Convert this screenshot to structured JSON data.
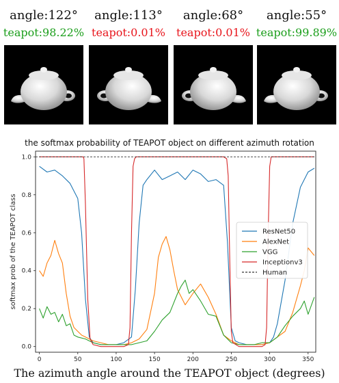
{
  "panels": [
    {
      "angle": "angle:122°",
      "prediction": "teapot:98.22%",
      "color": "#1a9e1a",
      "view_deg": 122
    },
    {
      "angle": "angle:113°",
      "prediction": "teapot:0.01%",
      "color": "#e8141b",
      "view_deg": 113
    },
    {
      "angle": "angle:68°",
      "prediction": "teapot:0.01%",
      "color": "#e8141b",
      "view_deg": 68
    },
    {
      "angle": "angle:55°",
      "prediction": "teapot:99.89%",
      "color": "#1a9e1a",
      "view_deg": 55
    }
  ],
  "chart_data": {
    "type": "line",
    "title": "the softmax probability of TEAPOT object on different azimuth rotation",
    "xlabel": "The azimuth angle around the TEAPOT object (degrees)",
    "ylabel": "softmax prob of the TEAPOT class",
    "xlim": [
      -5,
      360
    ],
    "ylim": [
      -0.03,
      1.03
    ],
    "xticks": [
      0,
      50,
      100,
      150,
      200,
      250,
      300,
      350
    ],
    "yticks": [
      0.0,
      0.2,
      0.4,
      0.6,
      0.8,
      1.0
    ],
    "legend_position": "center-right",
    "grid": false,
    "series": [
      {
        "name": "ResNet50",
        "color": "#1f77b4",
        "dash": "",
        "x": [
          0,
          10,
          20,
          30,
          40,
          50,
          55,
          60,
          65,
          70,
          80,
          90,
          100,
          110,
          120,
          125,
          130,
          135,
          140,
          150,
          160,
          170,
          180,
          190,
          200,
          210,
          220,
          230,
          240,
          245,
          250,
          255,
          260,
          270,
          280,
          290,
          300,
          305,
          310,
          320,
          330,
          340,
          350,
          358
        ],
        "y": [
          0.95,
          0.92,
          0.93,
          0.9,
          0.86,
          0.78,
          0.6,
          0.25,
          0.05,
          0.02,
          0.01,
          0.01,
          0.01,
          0.02,
          0.05,
          0.3,
          0.65,
          0.85,
          0.88,
          0.93,
          0.88,
          0.9,
          0.92,
          0.88,
          0.93,
          0.91,
          0.87,
          0.88,
          0.85,
          0.55,
          0.1,
          0.03,
          0.02,
          0.01,
          0.01,
          0.01,
          0.02,
          0.05,
          0.12,
          0.35,
          0.65,
          0.84,
          0.92,
          0.94
        ]
      },
      {
        "name": "AlexNet",
        "color": "#ff7f0e",
        "dash": "",
        "x": [
          0,
          5,
          10,
          15,
          20,
          25,
          30,
          35,
          40,
          45,
          50,
          55,
          60,
          70,
          80,
          90,
          100,
          110,
          120,
          130,
          140,
          150,
          155,
          160,
          165,
          170,
          175,
          180,
          190,
          200,
          210,
          220,
          230,
          240,
          250,
          260,
          270,
          280,
          290,
          300,
          310,
          320,
          330,
          340,
          345,
          350,
          358
        ],
        "y": [
          0.4,
          0.37,
          0.44,
          0.48,
          0.56,
          0.49,
          0.44,
          0.28,
          0.16,
          0.1,
          0.08,
          0.06,
          0.05,
          0.03,
          0.02,
          0.01,
          0.01,
          0.01,
          0.02,
          0.04,
          0.09,
          0.28,
          0.47,
          0.54,
          0.58,
          0.51,
          0.4,
          0.3,
          0.22,
          0.28,
          0.33,
          0.26,
          0.17,
          0.06,
          0.03,
          0.01,
          0.01,
          0.01,
          0.01,
          0.02,
          0.05,
          0.08,
          0.18,
          0.32,
          0.4,
          0.52,
          0.48
        ]
      },
      {
        "name": "VGG",
        "color": "#2ca02c",
        "dash": "",
        "x": [
          0,
          5,
          10,
          15,
          20,
          25,
          30,
          35,
          40,
          45,
          50,
          60,
          70,
          80,
          90,
          100,
          110,
          120,
          130,
          140,
          150,
          160,
          170,
          180,
          185,
          190,
          195,
          200,
          210,
          220,
          230,
          240,
          250,
          260,
          270,
          280,
          290,
          300,
          310,
          320,
          330,
          340,
          345,
          350,
          358
        ],
        "y": [
          0.2,
          0.15,
          0.21,
          0.17,
          0.18,
          0.13,
          0.17,
          0.11,
          0.12,
          0.06,
          0.05,
          0.04,
          0.02,
          0.01,
          0.01,
          0.01,
          0.01,
          0.01,
          0.02,
          0.03,
          0.08,
          0.14,
          0.18,
          0.28,
          0.32,
          0.35,
          0.28,
          0.3,
          0.24,
          0.17,
          0.16,
          0.06,
          0.02,
          0.01,
          0.01,
          0.01,
          0.02,
          0.02,
          0.05,
          0.11,
          0.16,
          0.2,
          0.24,
          0.17,
          0.26
        ]
      },
      {
        "name": "Inceptionv3",
        "color": "#d62728",
        "dash": "",
        "x": [
          0,
          57,
          58,
          60,
          63,
          66,
          70,
          80,
          90,
          100,
          110,
          116,
          118,
          120,
          122,
          124,
          126,
          130,
          140,
          200,
          240,
          244,
          246,
          248,
          250,
          252,
          256,
          260,
          280,
          290,
          294,
          296,
          298,
          300,
          302,
          310,
          358
        ],
        "y": [
          1.0,
          1.0,
          0.99,
          0.75,
          0.25,
          0.04,
          0.01,
          0.0,
          0.0,
          0.0,
          0.0,
          0.01,
          0.1,
          0.6,
          0.95,
          0.99,
          1.0,
          1.0,
          1.0,
          1.0,
          1.0,
          0.99,
          0.9,
          0.45,
          0.08,
          0.02,
          0.01,
          0.0,
          0.0,
          0.0,
          0.01,
          0.1,
          0.6,
          0.95,
          1.0,
          1.0,
          1.0
        ]
      },
      {
        "name": "Human",
        "color": "#333333",
        "dash": "3,2",
        "x": [
          -5,
          360
        ],
        "y": [
          1.0,
          1.0
        ]
      }
    ]
  }
}
